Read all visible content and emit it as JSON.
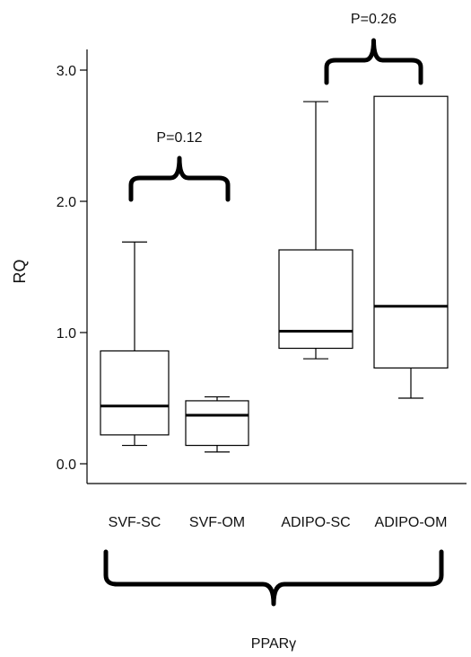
{
  "chart_data": {
    "type": "box",
    "ylabel": "RQ",
    "ylim": [
      -0.1,
      3.2
    ],
    "yticks": [
      "0.0",
      "1.0",
      "2.0",
      "3.0"
    ],
    "categories": [
      "SVF-SC",
      "SVF-OM",
      "ADIPO-SC",
      "ADIPO-OM"
    ],
    "boxes": [
      {
        "label": "SVF-SC",
        "min": 0.14,
        "q1": 0.22,
        "median": 0.44,
        "q3": 0.86,
        "max": 1.69
      },
      {
        "label": "SVF-OM",
        "min": 0.09,
        "q1": 0.14,
        "median": 0.37,
        "q3": 0.48,
        "max": 0.51
      },
      {
        "label": "ADIPO-SC",
        "min": 0.8,
        "q1": 0.88,
        "median": 1.01,
        "q3": 1.63,
        "max": 2.76
      },
      {
        "label": "ADIPO-OM",
        "min": 0.5,
        "q1": 0.73,
        "median": 1.2,
        "q3": 2.8,
        "max": 2.8
      }
    ],
    "comparisons": [
      {
        "pair": [
          "SVF-SC",
          "SVF-OM"
        ],
        "label": "P=0.12"
      },
      {
        "pair": [
          "ADIPO-SC",
          "ADIPO-OM"
        ],
        "label": "P=0.26"
      }
    ],
    "group_label": "PPARγ"
  }
}
